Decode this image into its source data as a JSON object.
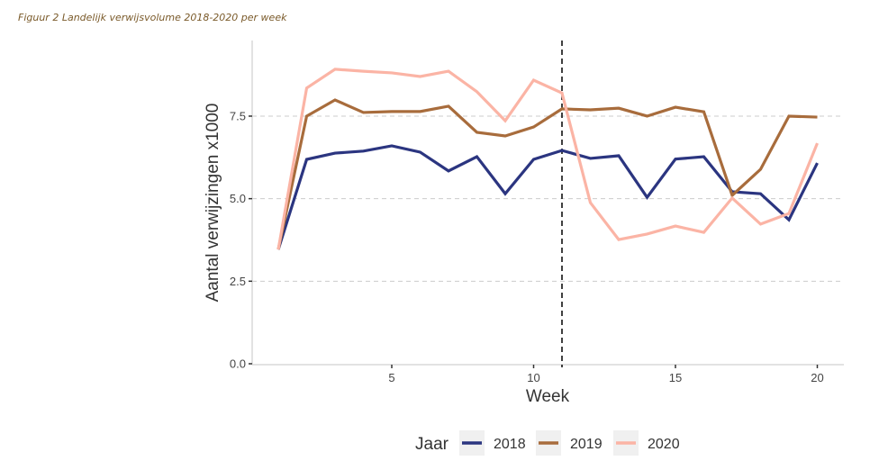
{
  "caption": "Figuur 2 Landelijk verwijsvolume 2018-2020 per week",
  "chart_data": {
    "type": "line",
    "title": "",
    "xlabel": "Week",
    "ylabel": "Aantal verwijzingen x1000",
    "xlim": [
      0.1,
      21
    ],
    "ylim": [
      0,
      9.7
    ],
    "x_ticks": [
      5,
      10,
      15,
      20
    ],
    "x_tick_labels": [
      "5",
      "10",
      "15",
      "20"
    ],
    "y_ticks": [
      0,
      2.5,
      5,
      7.5
    ],
    "y_tick_labels": [
      "0.0",
      "2.5",
      "5.0",
      "7.5"
    ],
    "grid": "horizontal dashed at y ticks",
    "vline": {
      "x": 11,
      "style": "dashed",
      "color": "#000000"
    },
    "x": [
      1,
      2,
      3,
      4,
      5,
      6,
      7,
      8,
      9,
      10,
      11,
      12,
      13,
      14,
      15,
      16,
      17,
      18,
      19,
      20
    ],
    "series": [
      {
        "name": "2018",
        "color": "#2b3580",
        "values": [
          3.46,
          6.19,
          6.38,
          6.44,
          6.6,
          6.41,
          5.84,
          6.27,
          5.15,
          6.19,
          6.46,
          6.22,
          6.3,
          5.04,
          6.2,
          6.27,
          5.21,
          5.15,
          4.36,
          6.08
        ]
      },
      {
        "name": "2019",
        "color": "#a86c3c",
        "values": [
          3.46,
          7.5,
          7.99,
          7.61,
          7.64,
          7.64,
          7.8,
          7.01,
          6.9,
          7.17,
          7.72,
          7.69,
          7.74,
          7.5,
          7.77,
          7.63,
          5.1,
          5.89,
          7.5,
          7.47
        ]
      },
      {
        "name": "2020",
        "color": "#fbb4a5",
        "values": [
          3.46,
          8.35,
          8.92,
          8.86,
          8.81,
          8.7,
          8.86,
          8.24,
          7.36,
          8.59,
          8.2,
          4.88,
          3.76,
          3.93,
          4.17,
          3.98,
          5.02,
          4.23,
          4.55,
          6.68
        ]
      }
    ],
    "legend": {
      "title": "Jaar",
      "position": "bottom",
      "entries": [
        "2018",
        "2019",
        "2020"
      ]
    }
  }
}
